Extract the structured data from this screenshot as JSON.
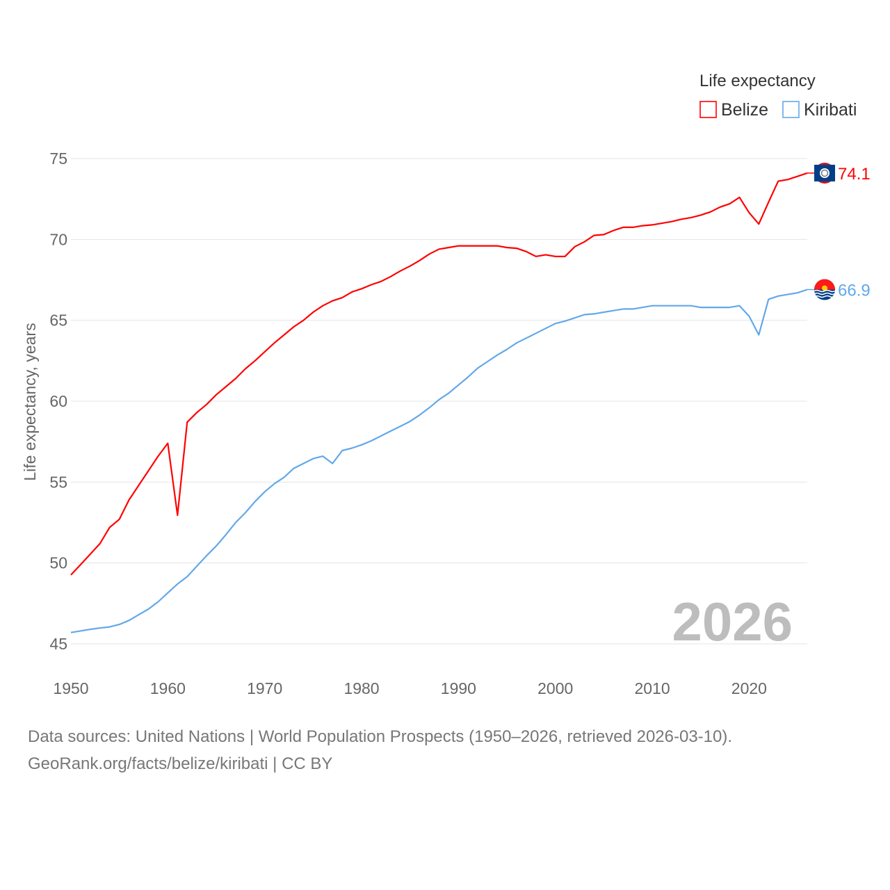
{
  "chart_data": {
    "type": "line",
    "title": "",
    "xlabel": "",
    "ylabel": "Life expectancy, years",
    "xlim": [
      1950,
      2026
    ],
    "ylim": [
      45,
      75
    ],
    "yticks": [
      45,
      50,
      55,
      60,
      65,
      70,
      75
    ],
    "xticks": [
      1950,
      1960,
      1970,
      1980,
      1990,
      2000,
      2010,
      2020
    ],
    "grid": true,
    "legend_title": "Life expectancy",
    "legend_position": "top-right",
    "year_watermark": "2026",
    "x": [
      1950,
      1951,
      1952,
      1953,
      1954,
      1955,
      1956,
      1957,
      1958,
      1959,
      1960,
      1961,
      1962,
      1963,
      1964,
      1965,
      1966,
      1967,
      1968,
      1969,
      1970,
      1971,
      1972,
      1973,
      1974,
      1975,
      1976,
      1977,
      1978,
      1979,
      1980,
      1981,
      1982,
      1983,
      1984,
      1985,
      1986,
      1987,
      1988,
      1989,
      1990,
      1991,
      1992,
      1993,
      1994,
      1995,
      1996,
      1997,
      1998,
      1999,
      2000,
      2001,
      2002,
      2003,
      2004,
      2005,
      2006,
      2007,
      2008,
      2009,
      2010,
      2011,
      2012,
      2013,
      2014,
      2015,
      2016,
      2017,
      2018,
      2019,
      2020,
      2021,
      2022,
      2023,
      2024,
      2025,
      2026
    ],
    "series": [
      {
        "name": "Belize",
        "color": "#ff0000",
        "end_label": "74.1",
        "flag": "belize",
        "values": [
          49.26,
          49.9,
          50.55,
          51.2,
          52.2,
          52.7,
          53.9,
          54.8,
          55.7,
          56.6,
          57.4,
          52.95,
          58.7,
          59.3,
          59.8,
          60.4,
          60.9,
          61.4,
          62.0,
          62.5,
          63.05,
          63.6,
          64.1,
          64.6,
          65.0,
          65.5,
          65.9,
          66.2,
          66.4,
          66.75,
          66.95,
          67.2,
          67.4,
          67.7,
          68.05,
          68.35,
          68.7,
          69.1,
          69.4,
          69.5,
          69.6,
          69.6,
          69.6,
          69.6,
          69.6,
          69.5,
          69.45,
          69.25,
          68.95,
          69.05,
          68.95,
          68.95,
          69.55,
          69.85,
          70.25,
          70.3,
          70.55,
          70.75,
          70.75,
          70.85,
          70.9,
          71.0,
          71.1,
          71.25,
          71.35,
          71.5,
          71.7,
          72.0,
          72.2,
          72.6,
          71.65,
          70.95,
          72.3,
          73.6,
          73.7,
          73.9,
          74.1
        ]
      },
      {
        "name": "Kiribati",
        "color": "#62a8ea",
        "end_label": "66.9",
        "flag": "kiribati",
        "values": [
          45.7,
          45.8,
          45.9,
          45.98,
          46.05,
          46.2,
          46.45,
          46.8,
          47.15,
          47.6,
          48.15,
          48.7,
          49.15,
          49.8,
          50.45,
          51.05,
          51.75,
          52.5,
          53.1,
          53.8,
          54.4,
          54.9,
          55.3,
          55.85,
          56.15,
          56.45,
          56.6,
          56.15,
          56.95,
          57.1,
          57.3,
          57.55,
          57.85,
          58.15,
          58.45,
          58.75,
          59.15,
          59.6,
          60.1,
          60.5,
          61.0,
          61.5,
          62.05,
          62.45,
          62.85,
          63.2,
          63.6,
          63.9,
          64.2,
          64.5,
          64.8,
          64.95,
          65.15,
          65.35,
          65.4,
          65.5,
          65.6,
          65.7,
          65.7,
          65.8,
          65.9,
          65.9,
          65.9,
          65.9,
          65.9,
          65.8,
          65.8,
          65.8,
          65.8,
          65.9,
          65.25,
          64.1,
          66.3,
          66.5,
          66.6,
          66.7,
          66.9
        ]
      }
    ]
  },
  "footer": {
    "sources": "Data sources: United Nations | World Population Prospects (1950–2026, retrieved 2026-03-10).",
    "credit": "GeoRank.org/facts/belize/kiribati | CC BY"
  }
}
